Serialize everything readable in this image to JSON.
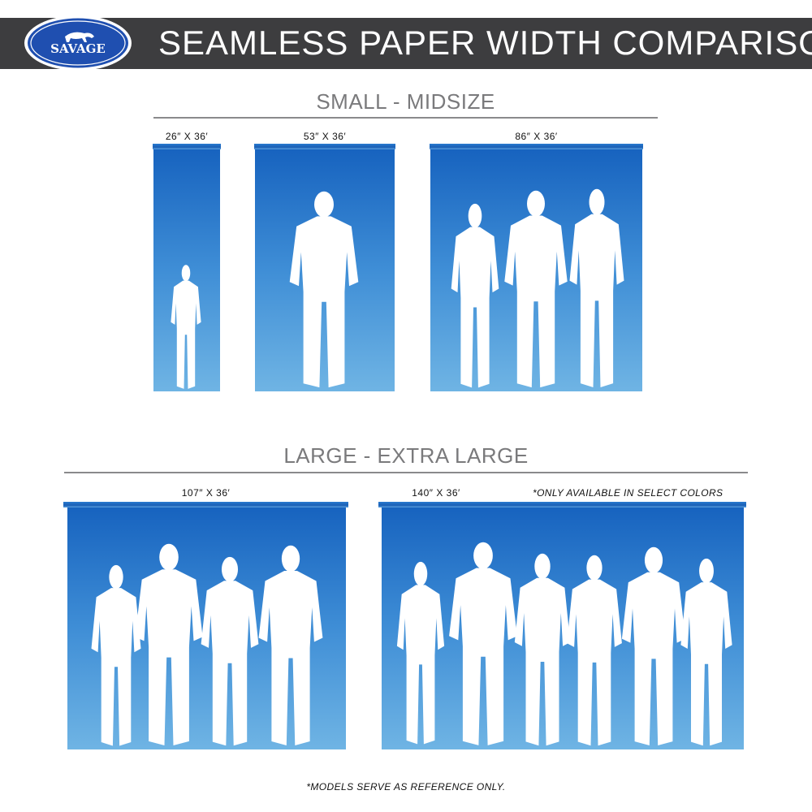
{
  "header": {
    "logo_text": "SAVAGE",
    "title": "SEAMLESS PAPER WIDTH COMPARISON"
  },
  "sections": [
    {
      "title": "SMALL - MIDSIZE",
      "panels": [
        {
          "label": "26″ X 36′",
          "figures": 1
        },
        {
          "label": "53″ X 36′",
          "figures": 1
        },
        {
          "label": "86″ X 36′",
          "figures": 3
        }
      ]
    },
    {
      "title": "LARGE - EXTRA LARGE",
      "panels": [
        {
          "label": "107″ X 36′",
          "figures": 4
        },
        {
          "label": "140″ X 36′",
          "figures": 6,
          "note": "*ONLY AVAILABLE IN SELECT COLORS"
        }
      ]
    }
  ],
  "footer": "*MODELS SERVE AS REFERENCE ONLY.",
  "colors": {
    "header_bg": "#3d3d3f",
    "paper_top": "#1763bf",
    "paper_bottom": "#6fb4e4",
    "logo_blue": "#1f4fb0"
  }
}
